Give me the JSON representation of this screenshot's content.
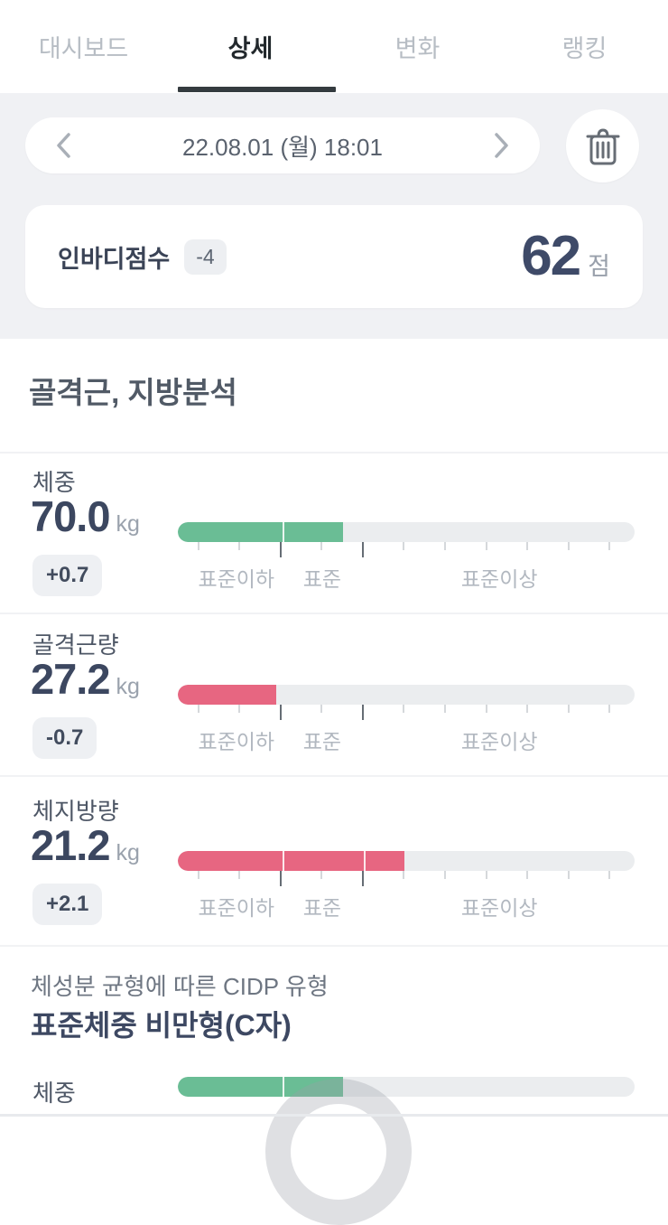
{
  "tabs": [
    {
      "label": "대시보드",
      "active": false
    },
    {
      "label": "상세",
      "active": true
    },
    {
      "label": "변화",
      "active": false
    },
    {
      "label": "랭킹",
      "active": false
    }
  ],
  "date_nav": {
    "date": "22.08.01 (월) 18:01"
  },
  "score_card": {
    "label": "인바디점수",
    "delta": "-4",
    "score": "62",
    "unit": "점"
  },
  "analysis": {
    "title": "골격근, 지방분석",
    "scale_labels": [
      "표준이하",
      "표준",
      "표준이상"
    ],
    "metrics": [
      {
        "name": "체중",
        "value": "70.0",
        "unit": "kg",
        "delta": "+0.7",
        "bar": {
          "color": "#6abd95",
          "fill_pct": 36.2,
          "divider_pcts": [
            22.9
          ]
        }
      },
      {
        "name": "골격근량",
        "value": "27.2",
        "unit": "kg",
        "delta": "-0.7",
        "bar": {
          "color": "#e76681",
          "fill_pct": 21.5,
          "divider_pcts": []
        }
      },
      {
        "name": "체지방량",
        "value": "21.2",
        "unit": "kg",
        "delta": "+2.1",
        "bar": {
          "color": "#e76681",
          "fill_pct": 49.6,
          "divider_pcts": [
            22.9,
            40.7
          ]
        }
      }
    ]
  },
  "cidp": {
    "subtitle": "체성분 균형에 따른 CIDP 유형",
    "type": "표준체중 비만형(C자)",
    "metric": {
      "name": "체중",
      "bar": {
        "color": "#6abd95",
        "fill_pct": 36.2,
        "divider_pcts": [
          22.9
        ]
      }
    }
  },
  "colors": {
    "green": "#6abd95",
    "red": "#e76681",
    "track": "#ebedef",
    "tab_active": "#22282c",
    "tab_inactive": "#b7bdc4",
    "value_text": "#3c4760",
    "badge_bg": "#eef0f3",
    "header_bg": "#f0f1f4"
  },
  "ticks": {
    "start_pct": 4.5,
    "step_pct": 9.0,
    "count": 11,
    "major_indices": [
      2,
      4
    ]
  }
}
